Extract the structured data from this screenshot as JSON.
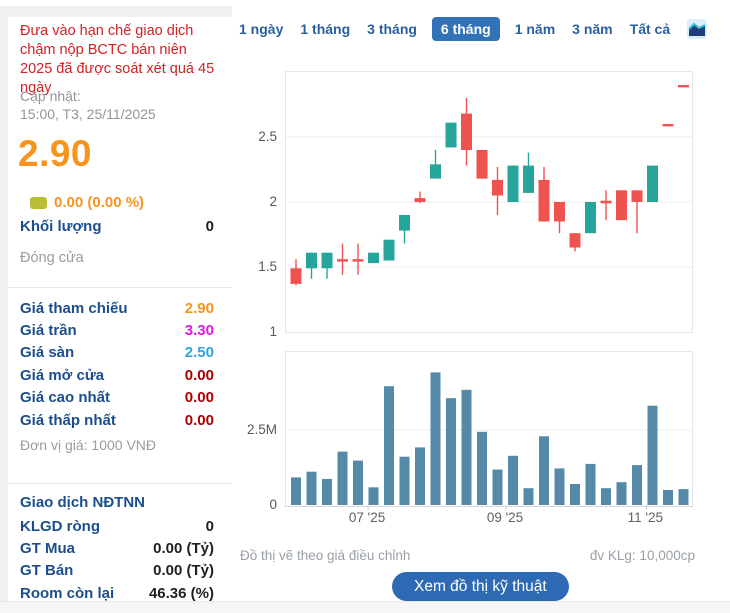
{
  "sidebar": {
    "warning": "Đưa vào hạn chế giao dịch chậm nộp BCTC bán niên 2025 đã được soát xét quá 45 ngày",
    "updated_label": "Cập nhật:",
    "updated_time": "15:00, T3, 25/11/2025",
    "price": "2.90",
    "change": "0.00 (0.00 %)",
    "volume_label": "Khối lượng",
    "volume_value": "0",
    "session_status": "Đóng cửa",
    "price_table": [
      {
        "label": "Giá tham chiếu",
        "value": "2.90",
        "color": "#f7941e"
      },
      {
        "label": "Giá trần",
        "value": "3.30",
        "color": "#e31ae3"
      },
      {
        "label": "Giá sàn",
        "value": "2.50",
        "color": "#2fa3e8"
      },
      {
        "label": "Giá mở cửa",
        "value": "0.00",
        "color": "#ad0000"
      },
      {
        "label": "Giá cao nhất",
        "value": "0.00",
        "color": "#ad0000"
      },
      {
        "label": "Giá thấp nhất",
        "value": "0.00",
        "color": "#ad0000"
      }
    ],
    "price_unit_note": "Đơn vị giá: 1000 VNĐ",
    "foreign_section": {
      "title": "Giao dịch NĐTNN",
      "rows": [
        {
          "label": "KLGD ròng",
          "value": "0"
        },
        {
          "label": "GT Mua",
          "value": "0.00 (Tỷ)"
        },
        {
          "label": "GT Bán",
          "value": "0.00 (Tỷ)"
        },
        {
          "label": "Room còn lại",
          "value": "46.36 (%)"
        }
      ]
    }
  },
  "tabs": {
    "items": [
      "1 ngày",
      "1 tháng",
      "3 tháng",
      "6 tháng",
      "1 năm",
      "3 năm",
      "Tất cả"
    ],
    "active": "6 tháng",
    "active_bg": "#3273b8"
  },
  "chart_data": [
    {
      "type": "candlestick",
      "timeframe": "6 tháng",
      "ylim": [
        1,
        3
      ],
      "grid": true,
      "y_ticks": [
        {
          "label": "2.5",
          "value": 2.5
        },
        {
          "label": "2",
          "value": 2.0
        },
        {
          "label": "1.5",
          "value": 1.5
        },
        {
          "label": "1",
          "value": 1.0
        }
      ],
      "x_ticks": [
        {
          "label": "07 '25",
          "index": 4.65
        },
        {
          "label": "09 '25",
          "index": 13.55
        },
        {
          "label": "11 '25",
          "index": 22.6
        }
      ],
      "up_color": "#26a69a",
      "down_color": "#ef5350",
      "candles": [
        {
          "o": 1.49,
          "h": 1.56,
          "l": 1.36,
          "c": 1.37
        },
        {
          "o": 1.49,
          "h": 1.61,
          "l": 1.41,
          "c": 1.61
        },
        {
          "o": 1.49,
          "h": 1.61,
          "l": 1.41,
          "c": 1.61
        },
        {
          "o": 1.56,
          "h": 1.68,
          "l": 1.44,
          "c": 1.55
        },
        {
          "o": 1.56,
          "h": 1.68,
          "l": 1.44,
          "c": 1.55
        },
        {
          "o": 1.53,
          "h": 1.61,
          "l": 1.53,
          "c": 1.61
        },
        {
          "o": 1.55,
          "h": 1.71,
          "l": 1.55,
          "c": 1.71
        },
        {
          "o": 1.78,
          "h": 1.9,
          "l": 1.68,
          "c": 1.9
        },
        {
          "o": 2.03,
          "h": 2.08,
          "l": 1.99,
          "c": 2.0
        },
        {
          "o": 2.18,
          "h": 2.4,
          "l": 2.18,
          "c": 2.29
        },
        {
          "o": 2.42,
          "h": 2.61,
          "l": 2.42,
          "c": 2.61
        },
        {
          "o": 2.68,
          "h": 2.8,
          "l": 2.28,
          "c": 2.4
        },
        {
          "o": 2.4,
          "h": 2.4,
          "l": 2.18,
          "c": 2.18
        },
        {
          "o": 2.17,
          "h": 2.27,
          "l": 1.9,
          "c": 2.05
        },
        {
          "o": 2.0,
          "h": 2.28,
          "l": 2.0,
          "c": 2.28
        },
        {
          "o": 2.07,
          "h": 2.38,
          "l": 2.07,
          "c": 2.28
        },
        {
          "o": 2.17,
          "h": 2.27,
          "l": 1.85,
          "c": 1.85
        },
        {
          "o": 2.0,
          "h": 2.0,
          "l": 1.76,
          "c": 1.85
        },
        {
          "o": 1.76,
          "h": 1.76,
          "l": 1.62,
          "c": 1.65
        },
        {
          "o": 1.76,
          "h": 2.0,
          "l": 1.76,
          "c": 2.0
        },
        {
          "o": 2.01,
          "h": 2.09,
          "l": 1.86,
          "c": 1.99
        },
        {
          "o": 2.09,
          "h": 2.09,
          "l": 1.86,
          "c": 1.86
        },
        {
          "o": 2.09,
          "h": 2.09,
          "l": 1.76,
          "c": 2.0
        },
        {
          "o": 2.0,
          "h": 2.28,
          "l": 2.0,
          "c": 2.28
        },
        {
          "o": 2.6,
          "h": 2.6,
          "l": 2.6,
          "c": 2.6
        },
        {
          "o": 2.9,
          "h": 2.9,
          "l": 2.9,
          "c": 2.9
        }
      ]
    },
    {
      "type": "bar",
      "name": "volume",
      "unit": "M",
      "ylim": [
        0,
        5.1
      ],
      "y_ticks": [
        {
          "label": "2.5M",
          "value": 2.5
        },
        {
          "label": "0",
          "value": 0
        }
      ],
      "bar_color": "#5589a8",
      "values": [
        0.92,
        1.11,
        0.87,
        1.78,
        1.48,
        0.59,
        3.96,
        1.61,
        1.92,
        4.42,
        3.56,
        3.84,
        2.44,
        1.18,
        1.64,
        0.56,
        2.29,
        1.22,
        0.7,
        1.37,
        0.56,
        0.76,
        1.33,
        3.31,
        0.5,
        0.53
      ]
    }
  ],
  "footer": {
    "left_note": "Đồ thị vẽ theo giá điều chỉnh",
    "right_note": "đv KLg: 10,000cp",
    "button_label": "Xem đồ thị kỹ thuật",
    "button_color": "#2d6ab3"
  }
}
